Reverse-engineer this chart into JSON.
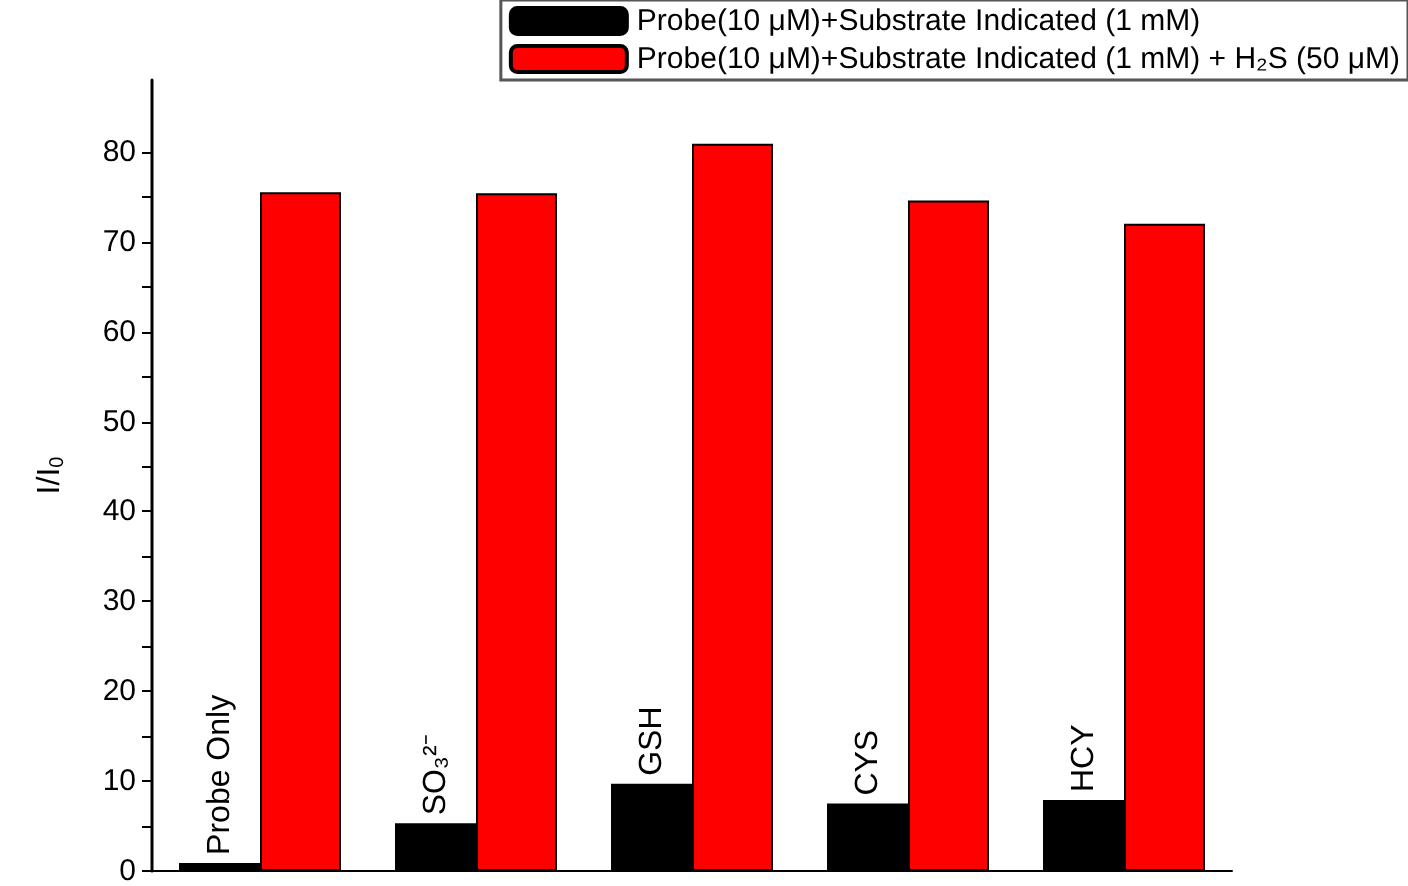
{
  "chart_data": {
    "type": "bar",
    "ylabel": "I/I$_{0}$",
    "categories": [
      "Probe Only",
      "SO₃²⁻",
      "GSH",
      "CYS",
      "HCY"
    ],
    "series": [
      {
        "name": "Probe(10 μM)+Substrate Indicated (1 mM)",
        "color": "#000000",
        "values": [
          0.9,
          5.3,
          9.7,
          7.5,
          7.9
        ]
      },
      {
        "name": "Probe(10 μM)+Substrate Indicated (1 mM) + H₂S (50 μM)",
        "color": "#ff0000",
        "values": [
          75.5,
          75.4,
          80.9,
          74.6,
          72.0
        ]
      }
    ],
    "ylim": [
      0,
      88
    ],
    "yticks": [
      0,
      {
        "value": 5,
        "label": null
      },
      10,
      {
        "value": 15,
        "label": null
      },
      20,
      {
        "value": 25,
        "label": null
      },
      30,
      {
        "value": 35,
        "label": null
      },
      40,
      {
        "value": 45,
        "label": null
      },
      50,
      {
        "value": 55,
        "label": null
      },
      60,
      {
        "value": 65,
        "label": null
      },
      70,
      {
        "value": 75,
        "label": null
      },
      80
    ],
    "legend": "top right",
    "grid": false,
    "tick_labels": "y"
  }
}
